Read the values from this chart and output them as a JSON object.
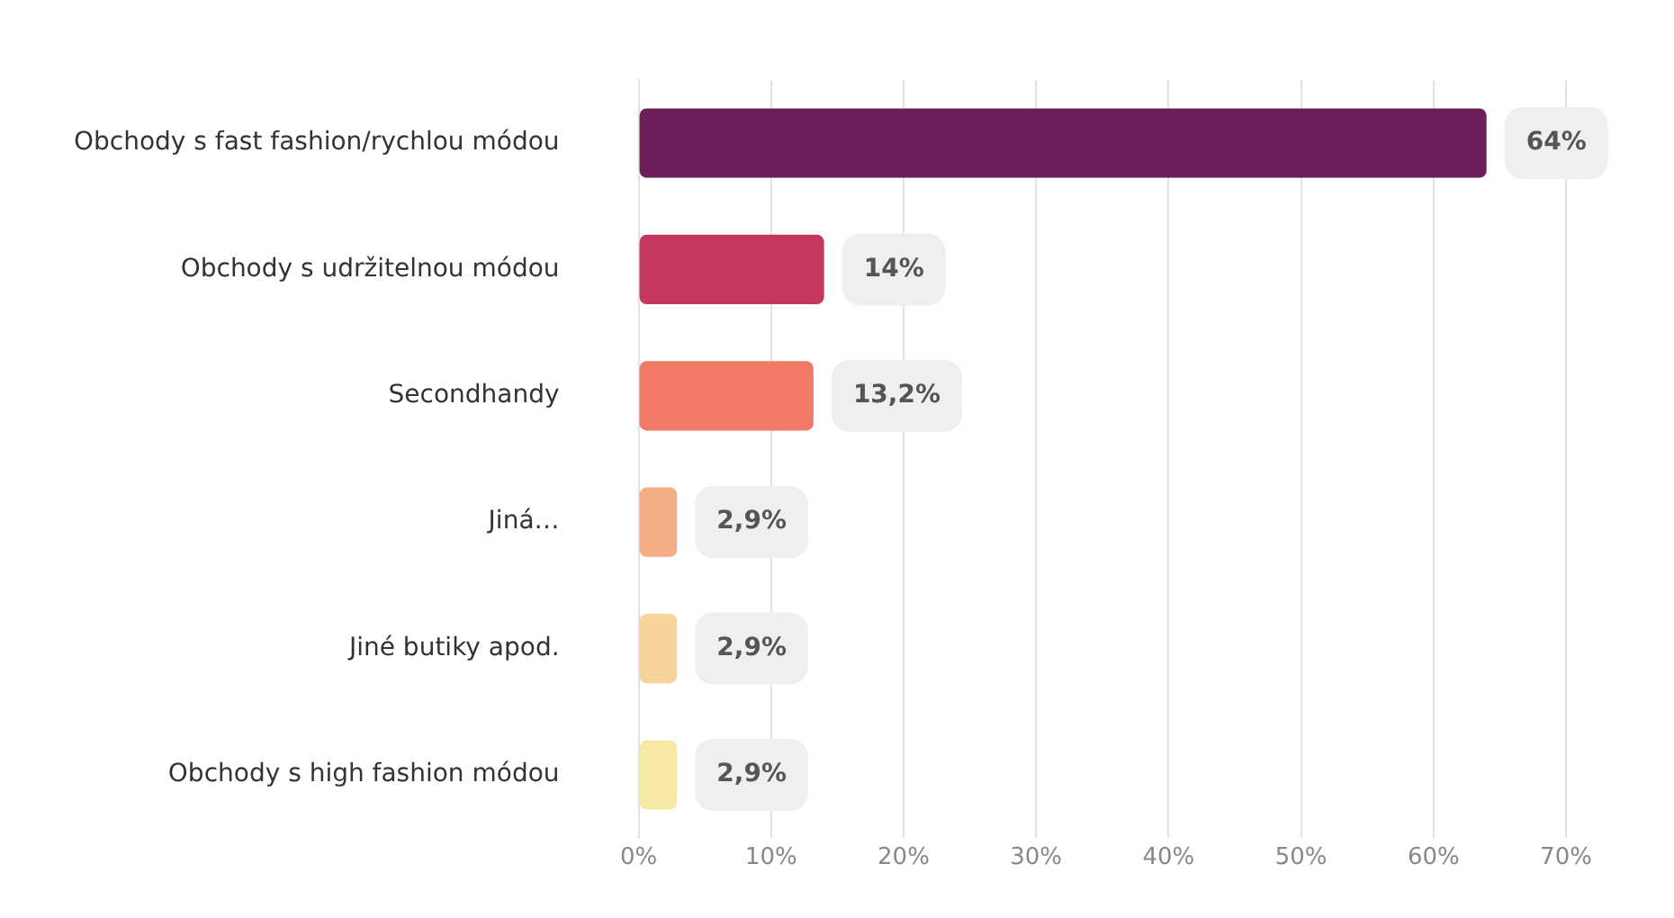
{
  "chart_data": {
    "type": "bar",
    "orientation": "horizontal",
    "categories": [
      "Obchody s fast fashion/rychlou módou",
      "Obchody s udržitelnou módou",
      "Secondhandy",
      "Jiná…",
      "Jiné butiky apod.",
      "Obchody s high fashion módou"
    ],
    "values": [
      64,
      14,
      13.2,
      2.9,
      2.9,
      2.9
    ],
    "value_labels": [
      "64%",
      "14%",
      "13,2%",
      "2,9%",
      "2,9%",
      "2,9%"
    ],
    "colors": [
      "#6d1f5b",
      "#c4385e",
      "#f07a66",
      "#f4ad85",
      "#f9d49a",
      "#f5e9a4"
    ],
    "xlim": [
      0,
      70
    ],
    "xticks": [
      {
        "value": 0,
        "label": "0%"
      },
      {
        "value": 10,
        "label": "10%"
      },
      {
        "value": 20,
        "label": "20%"
      },
      {
        "value": 30,
        "label": "30%"
      },
      {
        "value": 40,
        "label": "40%"
      },
      {
        "value": 50,
        "label": "50%"
      },
      {
        "value": 60,
        "label": "60%"
      },
      {
        "value": 70,
        "label": "70%"
      }
    ],
    "grid": "x"
  }
}
